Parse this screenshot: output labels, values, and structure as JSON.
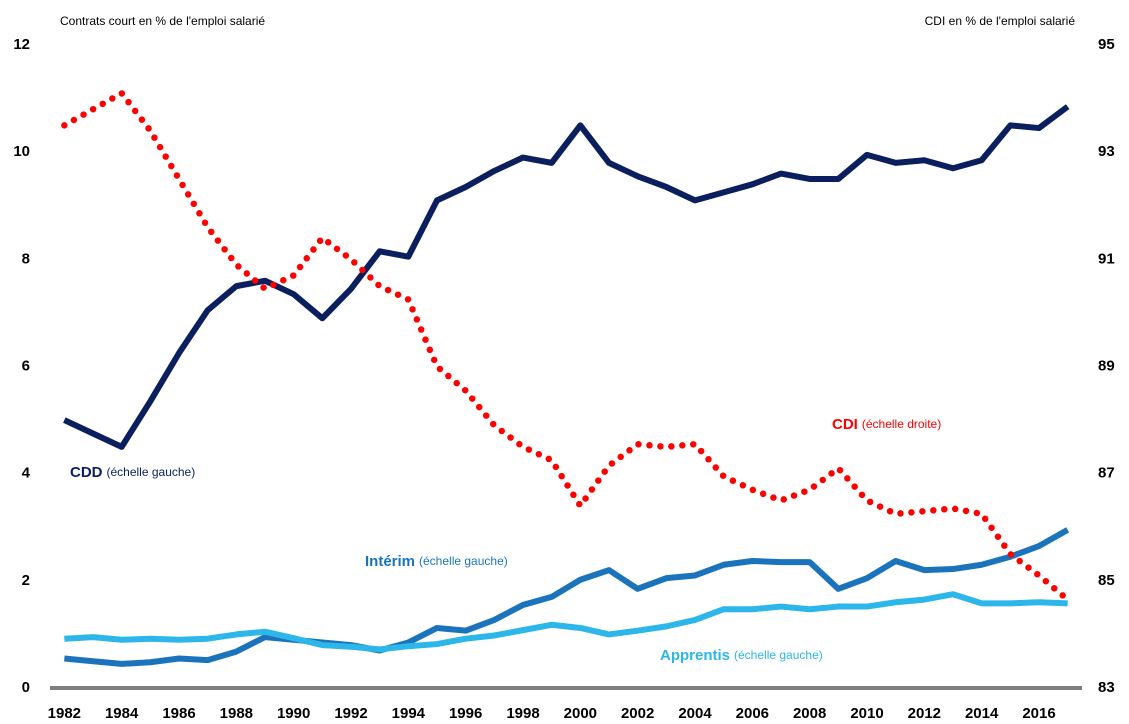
{
  "chart_data": {
    "type": "line",
    "y_label": "Contrats court en % de l'emploi salarié",
    "y2_label": "CDI en % de l'emploi salarié",
    "x": [
      1982,
      1983,
      1984,
      1985,
      1986,
      1987,
      1988,
      1989,
      1990,
      1991,
      1992,
      1993,
      1994,
      1995,
      1996,
      1997,
      1998,
      1999,
      2000,
      2001,
      2002,
      2003,
      2004,
      2005,
      2006,
      2007,
      2008,
      2009,
      2010,
      2011,
      2012,
      2013,
      2014,
      2015,
      2016,
      2017
    ],
    "xlim": [
      1981.5,
      2017.5
    ],
    "xticks": [
      1982,
      1984,
      1986,
      1988,
      1990,
      1992,
      1994,
      1996,
      1998,
      2000,
      2002,
      2004,
      2006,
      2008,
      2010,
      2012,
      2014,
      2016
    ],
    "ylim": [
      0,
      12
    ],
    "yticks": [
      0,
      2,
      4,
      6,
      8,
      10,
      12
    ],
    "y2lim": [
      83,
      95
    ],
    "y2ticks": [
      83,
      85,
      87,
      89,
      91,
      93,
      95
    ],
    "series": [
      {
        "name": "CDD",
        "note": "(échelle gauche)",
        "color": "#0b1f5e",
        "style": "solid",
        "values": [
          5.0,
          4.75,
          4.5,
          5.35,
          6.25,
          7.05,
          7.5,
          7.6,
          7.35,
          6.9,
          7.45,
          8.15,
          8.05,
          9.1,
          9.35,
          9.65,
          9.9,
          9.8,
          10.5,
          9.8,
          9.55,
          9.35,
          9.1,
          9.25,
          9.4,
          9.6,
          9.5,
          9.5,
          9.95,
          9.8,
          9.85,
          9.7,
          9.85,
          10.5,
          10.45,
          10.85
        ]
      },
      {
        "name": "Intérim",
        "note": "(échelle gauche)",
        "color": "#1b74bb",
        "style": "solid",
        "values": [
          0.55,
          0.5,
          0.45,
          0.48,
          0.55,
          0.52,
          0.68,
          0.95,
          0.9,
          0.85,
          0.8,
          0.7,
          0.85,
          1.12,
          1.07,
          1.27,
          1.55,
          1.7,
          2.02,
          2.2,
          1.85,
          2.05,
          2.1,
          2.3,
          2.37,
          2.35,
          2.35,
          1.85,
          2.05,
          2.37,
          2.2,
          2.22,
          2.3,
          2.45,
          2.65,
          2.95
        ]
      },
      {
        "name": "Apprentis",
        "note": "(échelle gauche)",
        "color": "#2cb6ea",
        "style": "solid",
        "values": [
          0.92,
          0.95,
          0.9,
          0.92,
          0.9,
          0.92,
          1.0,
          1.05,
          0.93,
          0.8,
          0.77,
          0.72,
          0.78,
          0.82,
          0.92,
          0.98,
          1.08,
          1.18,
          1.12,
          1.0,
          1.07,
          1.15,
          1.27,
          1.47,
          1.47,
          1.52,
          1.47,
          1.52,
          1.52,
          1.6,
          1.65,
          1.75,
          1.58,
          1.58,
          1.6,
          1.58
        ]
      },
      {
        "name": "CDI",
        "note": "(échelle droite)",
        "color": "#ff0000",
        "style": "dotted",
        "axis": "y2",
        "values": [
          93.5,
          93.8,
          94.1,
          93.4,
          92.5,
          91.6,
          90.9,
          90.45,
          90.7,
          91.4,
          91.0,
          90.5,
          90.25,
          89.0,
          88.55,
          87.9,
          87.5,
          87.25,
          86.4,
          87.15,
          87.55,
          87.5,
          87.55,
          86.95,
          86.7,
          86.5,
          86.7,
          87.1,
          86.5,
          86.25,
          86.3,
          86.35,
          86.25,
          85.5,
          85.1,
          84.65
        ]
      }
    ]
  }
}
